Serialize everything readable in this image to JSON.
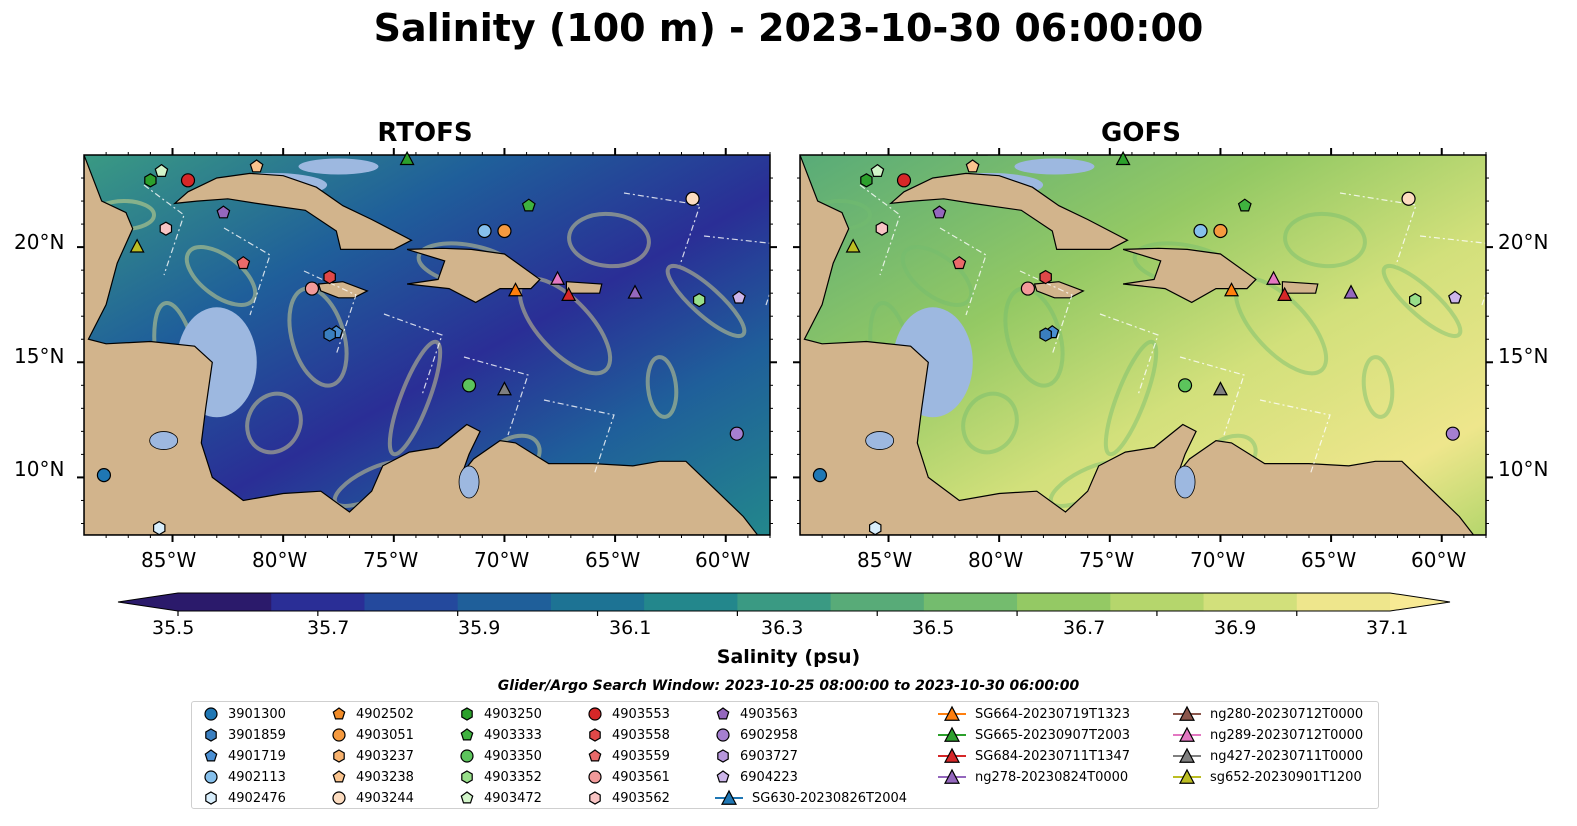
{
  "title": "Salinity (100 m) - 2023-10-30 06:00:00",
  "panels": [
    {
      "title": "RTOFS"
    },
    {
      "title": "GOFS"
    }
  ],
  "lon_ticks": [
    "85°W",
    "80°W",
    "75°W",
    "70°W",
    "65°W",
    "60°W"
  ],
  "lat_ticks": [
    "20°N",
    "15°N",
    "10°N"
  ],
  "colorbar": {
    "label": "Salinity (psu)",
    "ticks": [
      "35.5",
      "35.7",
      "35.9",
      "36.1",
      "36.3",
      "36.5",
      "36.7",
      "36.9",
      "37.1"
    ],
    "colors": [
      "#2b1a6b",
      "#2a2e96",
      "#24499d",
      "#1f5f9a",
      "#1d7394",
      "#23878c",
      "#3a9a83",
      "#58ab78",
      "#74bc6e",
      "#94c964",
      "#b5d66c",
      "#d2e07b",
      "#eee68c"
    ]
  },
  "search_window": "Glider/Argo Search Window: 2023-10-25 08:00:00 to 2023-10-30 06:00:00",
  "legend": {
    "columns": [
      [
        {
          "label": "3901300",
          "marker": "circle",
          "color": "#1f77b4"
        },
        {
          "label": "3901859",
          "marker": "hexagon",
          "color": "#3a7fc0"
        },
        {
          "label": "4901719",
          "marker": "pentagon",
          "color": "#4a8fd3"
        },
        {
          "label": "4902113",
          "marker": "circle",
          "color": "#86c0ec"
        },
        {
          "label": "4902476",
          "marker": "hexagon",
          "color": "#d8eefc"
        }
      ],
      [
        {
          "label": "4902502",
          "marker": "pentagon",
          "color": "#f28c28"
        },
        {
          "label": "4903051",
          "marker": "circle",
          "color": "#f59a3f"
        },
        {
          "label": "4903237",
          "marker": "hexagon",
          "color": "#f7b26e"
        },
        {
          "label": "4903238",
          "marker": "pentagon",
          "color": "#fac48e"
        },
        {
          "label": "4903244",
          "marker": "circle",
          "color": "#fcdcc0"
        }
      ],
      [
        {
          "label": "4903250",
          "marker": "hexagon",
          "color": "#2ca02c"
        },
        {
          "label": "4903333",
          "marker": "pentagon",
          "color": "#3fb23f"
        },
        {
          "label": "4903350",
          "marker": "circle",
          "color": "#5cc45c"
        },
        {
          "label": "4903352",
          "marker": "hexagon",
          "color": "#98df8a"
        },
        {
          "label": "4903472",
          "marker": "pentagon",
          "color": "#d2f5c9"
        }
      ],
      [
        {
          "label": "4903553",
          "marker": "circle",
          "color": "#d62728"
        },
        {
          "label": "4903558",
          "marker": "hexagon",
          "color": "#e04848"
        },
        {
          "label": "4903559",
          "marker": "pentagon",
          "color": "#ea6a6a"
        },
        {
          "label": "4903561",
          "marker": "circle",
          "color": "#f29a9a"
        },
        {
          "label": "4903562",
          "marker": "hexagon",
          "color": "#f8c4c4"
        }
      ],
      [
        {
          "label": "4903563",
          "marker": "pentagon",
          "color": "#9467bd"
        },
        {
          "label": "6902958",
          "marker": "circle",
          "color": "#a57fd0"
        },
        {
          "label": "6903727",
          "marker": "hexagon",
          "color": "#b797dc"
        },
        {
          "label": "6904223",
          "marker": "pentagon",
          "color": "#cdb6ea"
        },
        {
          "label": "SG630-20230826T2004",
          "marker": "triangle-line",
          "color": "#1f77b4"
        }
      ],
      [
        {
          "label": "SG664-20230719T1323",
          "marker": "triangle-line",
          "color": "#ff7f0e"
        },
        {
          "label": "SG665-20230907T2003",
          "marker": "triangle-line",
          "color": "#2ca02c"
        },
        {
          "label": "SG684-20230711T1347",
          "marker": "triangle-line",
          "color": "#d62728"
        },
        {
          "label": "ng278-20230824T0000",
          "marker": "triangle-line",
          "color": "#9467bd"
        }
      ],
      [
        {
          "label": "ng280-20230712T0000",
          "marker": "triangle-line",
          "color": "#8c564b"
        },
        {
          "label": "ng289-20230712T0000",
          "marker": "triangle-line",
          "color": "#e377c2"
        },
        {
          "label": "ng427-20230711T0000",
          "marker": "triangle-line",
          "color": "#7f7f7f"
        },
        {
          "label": "sg652-20230901T1200",
          "marker": "triangle-line",
          "color": "#bcbd22"
        }
      ]
    ]
  },
  "chart_data": {
    "type": "heatmap",
    "title": "Salinity (100 m) - 2023-10-30 06:00:00",
    "colorbar_label": "Salinity (psu)",
    "vmin": 35.5,
    "vmax": 37.1,
    "colorbar_extend": "both",
    "lon_range": [
      -89,
      -58
    ],
    "lat_range": [
      7.5,
      24
    ],
    "panels": [
      "RTOFS",
      "GOFS"
    ],
    "observations": [
      {
        "id": "3901300",
        "marker": "circle",
        "lon": -88.1,
        "lat": 10.1,
        "color": "#1f77b4"
      },
      {
        "id": "4902476",
        "marker": "hexagon",
        "lon": -85.6,
        "lat": 7.8,
        "color": "#d8eefc"
      },
      {
        "id": "4903472",
        "marker": "pentagon",
        "lon": -85.5,
        "lat": 23.3,
        "color": "#d2f5c9"
      },
      {
        "id": "4903250",
        "marker": "hexagon",
        "lon": -86.0,
        "lat": 22.9,
        "color": "#2ca02c"
      },
      {
        "id": "4903553",
        "marker": "circle",
        "lon": -84.3,
        "lat": 22.9,
        "color": "#d62728"
      },
      {
        "id": "4903238",
        "marker": "pentagon",
        "lon": -81.2,
        "lat": 23.5,
        "color": "#fac48e"
      },
      {
        "id": "4903562",
        "marker": "hexagon",
        "lon": -85.3,
        "lat": 20.8,
        "color": "#f8c4c4"
      },
      {
        "id": "4903563",
        "marker": "pentagon",
        "lon": -82.7,
        "lat": 21.5,
        "color": "#9467bd"
      },
      {
        "id": "4903559",
        "marker": "pentagon",
        "lon": -81.8,
        "lat": 19.3,
        "color": "#ea6a6a"
      },
      {
        "id": "4903561",
        "marker": "circle",
        "lon": -78.7,
        "lat": 18.2,
        "color": "#f29a9a"
      },
      {
        "id": "4903558",
        "marker": "hexagon",
        "lon": -77.9,
        "lat": 18.7,
        "color": "#e04848"
      },
      {
        "id": "4901719",
        "marker": "pentagon",
        "lon": -77.6,
        "lat": 16.3,
        "color": "#4a8fd3"
      },
      {
        "id": "3901859",
        "marker": "hexagon",
        "lon": -77.9,
        "lat": 16.2,
        "color": "#3a7fc0"
      },
      {
        "id": "4902113",
        "marker": "circle",
        "lon": -70.9,
        "lat": 20.7,
        "color": "#86c0ec"
      },
      {
        "id": "4903051",
        "marker": "circle",
        "lon": -70.0,
        "lat": 20.7,
        "color": "#f59a3f"
      },
      {
        "id": "4903333",
        "marker": "pentagon",
        "lon": -68.9,
        "lat": 21.8,
        "color": "#3fb23f"
      },
      {
        "id": "4903244",
        "marker": "circle",
        "lon": -61.5,
        "lat": 22.1,
        "color": "#fcdcc0"
      },
      {
        "id": "4903352",
        "marker": "hexagon",
        "lon": -61.2,
        "lat": 17.7,
        "color": "#98df8a"
      },
      {
        "id": "6904223",
        "marker": "pentagon",
        "lon": -59.4,
        "lat": 17.8,
        "color": "#cdb6ea"
      },
      {
        "id": "4903350",
        "marker": "circle",
        "lon": -71.6,
        "lat": 14.0,
        "color": "#5cc45c"
      },
      {
        "id": "6902958",
        "marker": "circle",
        "lon": -59.5,
        "lat": 11.9,
        "color": "#a57fd0"
      },
      {
        "id": "SG664-20230719T1323",
        "marker": "triangle",
        "lon": -69.5,
        "lat": 18.1,
        "color": "#ff7f0e"
      },
      {
        "id": "SG684-20230711T1347",
        "marker": "triangle",
        "lon": -67.1,
        "lat": 17.9,
        "color": "#d62728"
      },
      {
        "id": "ng289-20230712T0000",
        "marker": "triangle",
        "lon": -67.6,
        "lat": 18.6,
        "color": "#e377c2"
      },
      {
        "id": "ng278-20230824T0000",
        "marker": "triangle",
        "lon": -64.1,
        "lat": 18.0,
        "color": "#9467bd"
      },
      {
        "id": "ng427-20230711T0000",
        "marker": "triangle",
        "lon": -70.0,
        "lat": 13.8,
        "color": "#7f7f7f"
      },
      {
        "id": "sg652-20230901T1200",
        "marker": "triangle",
        "lon": -86.6,
        "lat": 20.0,
        "color": "#bcbd22"
      },
      {
        "id": "SG665-20230907T2003",
        "marker": "triangle",
        "lon": -74.4,
        "lat": 23.8,
        "color": "#2ca02c"
      }
    ]
  }
}
